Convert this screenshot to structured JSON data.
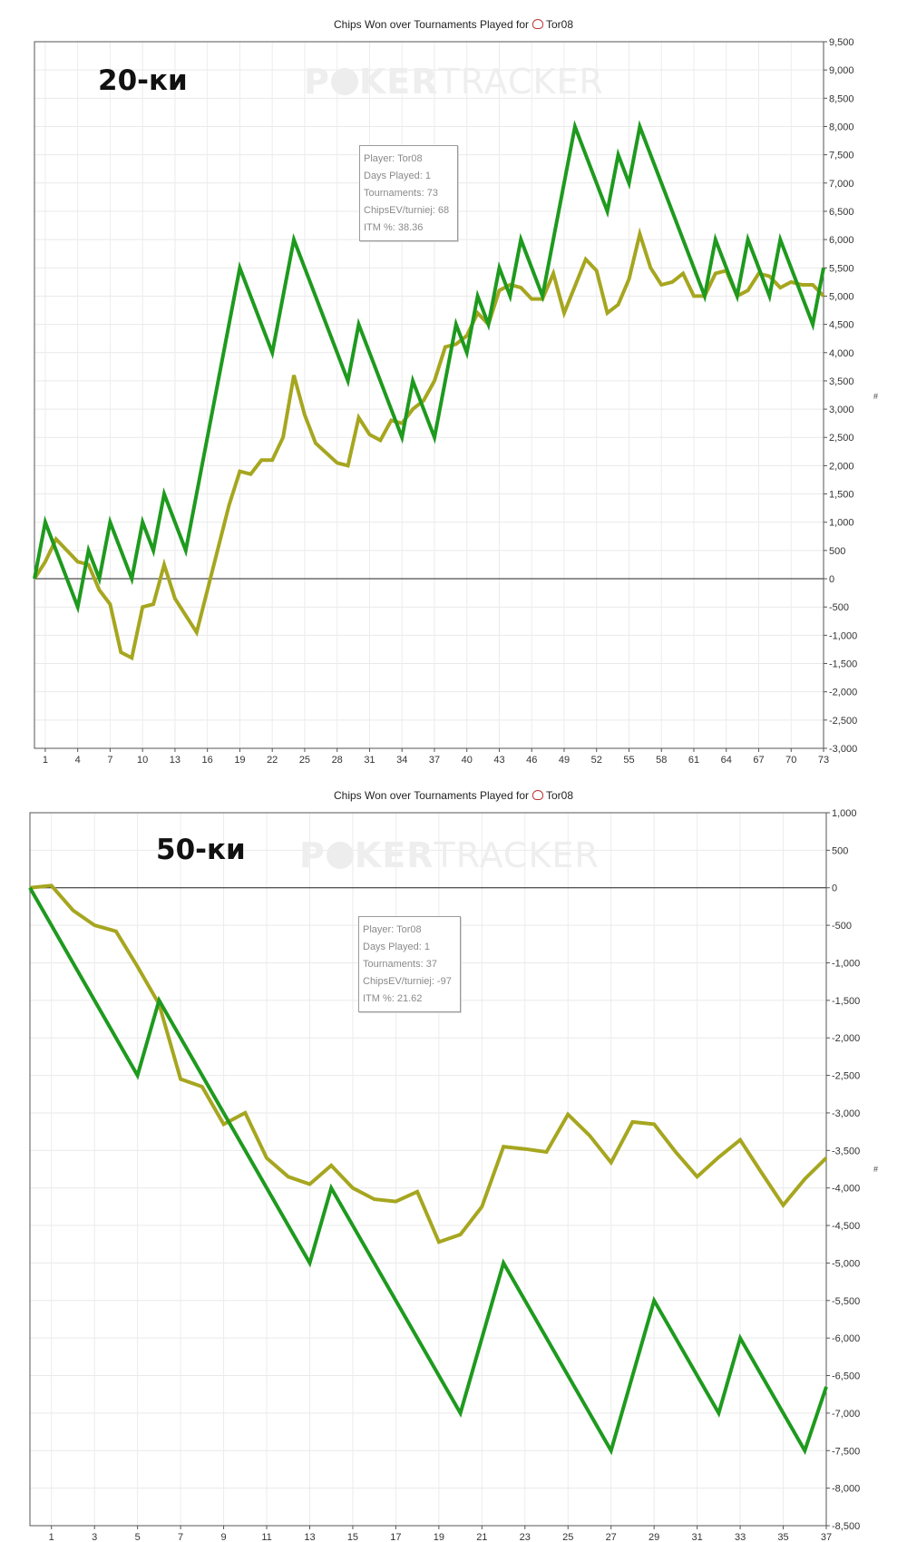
{
  "chart_data": [
    {
      "type": "line",
      "title": "Chips Won over Tournaments Played for",
      "player_name": "Tor08",
      "label": "20-ки",
      "watermark": "POKERTRACKER",
      "info_box": [
        "Player: Tor08",
        "Days Played: 1",
        "Tournaments: 73",
        "ChipsEV/turniej: 68",
        "ITM %: 38.36"
      ],
      "x_tick_labels": [
        "1",
        "4",
        "7",
        "10",
        "13",
        "16",
        "19",
        "22",
        "25",
        "28",
        "31",
        "34",
        "37",
        "40",
        "43",
        "46",
        "49",
        "52",
        "55",
        "58",
        "61",
        "64",
        "67",
        "70",
        "73"
      ],
      "x_range": [
        0,
        73
      ],
      "y_tick_values": [
        -3000,
        -2500,
        -2000,
        -1500,
        -1000,
        -500,
        0,
        500,
        1000,
        1500,
        2000,
        2500,
        3000,
        3500,
        4000,
        4500,
        5000,
        5500,
        6000,
        6500,
        7000,
        7500,
        8000,
        8500,
        9000,
        9500
      ],
      "y_tick_labels": [
        "-3,000",
        "-2,500",
        "-2,000",
        "-1,500",
        "-1,000",
        "-500",
        "0",
        "500",
        "1,000",
        "1,500",
        "2,000",
        "2,500",
        "3,000",
        "3,500",
        "4,000",
        "4,500",
        "5,000",
        "5,500",
        "6,000",
        "6,500",
        "7,000",
        "7,500",
        "8,000",
        "8,500",
        "9,000",
        "9,500"
      ],
      "ylim": [
        -3000,
        9500
      ],
      "grid": true,
      "series": [
        {
          "color": "#1e9a1e",
          "points": [
            [
              0,
              0
            ],
            [
              1,
              1000
            ],
            [
              4,
              -500
            ],
            [
              5,
              500
            ],
            [
              6,
              0
            ],
            [
              7,
              1000
            ],
            [
              9,
              0
            ],
            [
              10,
              1000
            ],
            [
              11,
              500
            ],
            [
              12,
              1500
            ],
            [
              14,
              500
            ],
            [
              19,
              5500
            ],
            [
              22,
              4000
            ],
            [
              24,
              6000
            ],
            [
              29,
              3500
            ],
            [
              30,
              4500
            ],
            [
              34,
              2500
            ],
            [
              35,
              3500
            ],
            [
              37,
              2500
            ],
            [
              39,
              4500
            ],
            [
              40,
              4000
            ],
            [
              41,
              5000
            ],
            [
              42,
              4500
            ],
            [
              43,
              5500
            ],
            [
              44,
              5000
            ],
            [
              45,
              6000
            ],
            [
              47,
              5000
            ],
            [
              50,
              8000
            ],
            [
              53,
              6500
            ],
            [
              54,
              7500
            ],
            [
              55,
              7000
            ],
            [
              56,
              8000
            ],
            [
              62,
              5000
            ],
            [
              63,
              6000
            ],
            [
              65,
              5000
            ],
            [
              66,
              6000
            ],
            [
              68,
              5000
            ],
            [
              69,
              6000
            ],
            [
              72,
              4500
            ],
            [
              73,
              5500
            ]
          ]
        },
        {
          "color": "#a6a620",
          "points": [
            [
              0,
              0
            ],
            [
              1,
              300
            ],
            [
              2,
              700
            ],
            [
              3,
              500
            ],
            [
              4,
              300
            ],
            [
              5,
              250
            ],
            [
              6,
              -200
            ],
            [
              7,
              -450
            ],
            [
              8,
              -1300
            ],
            [
              9,
              -1400
            ],
            [
              10,
              -500
            ],
            [
              11,
              -450
            ],
            [
              12,
              250
            ],
            [
              13,
              -350
            ],
            [
              15,
              -950
            ],
            [
              16,
              -200
            ],
            [
              18,
              1300
            ],
            [
              19,
              1900
            ],
            [
              20,
              1850
            ],
            [
              21,
              2100
            ],
            [
              22,
              2100
            ],
            [
              23,
              2500
            ],
            [
              24,
              3600
            ],
            [
              25,
              2900
            ],
            [
              26,
              2400
            ],
            [
              28,
              2050
            ],
            [
              29,
              2000
            ],
            [
              30,
              2850
            ],
            [
              31,
              2550
            ],
            [
              32,
              2450
            ],
            [
              33,
              2800
            ],
            [
              34,
              2750
            ],
            [
              35,
              3000
            ],
            [
              36,
              3150
            ],
            [
              37,
              3500
            ],
            [
              38,
              4100
            ],
            [
              39,
              4150
            ],
            [
              40,
              4300
            ],
            [
              41,
              4700
            ],
            [
              42,
              4500
            ],
            [
              43,
              5100
            ],
            [
              44,
              5200
            ],
            [
              45,
              5150
            ],
            [
              46,
              4950
            ],
            [
              47,
              4950
            ],
            [
              48,
              5400
            ],
            [
              49,
              4700
            ],
            [
              51,
              5650
            ],
            [
              52,
              5450
            ],
            [
              53,
              4700
            ],
            [
              54,
              4850
            ],
            [
              55,
              5300
            ],
            [
              56,
              6100
            ],
            [
              57,
              5500
            ],
            [
              58,
              5200
            ],
            [
              59,
              5250
            ],
            [
              60,
              5400
            ],
            [
              61,
              5000
            ],
            [
              62,
              5000
            ],
            [
              63,
              5400
            ],
            [
              64,
              5450
            ],
            [
              65,
              5000
            ],
            [
              66,
              5100
            ],
            [
              67,
              5400
            ],
            [
              68,
              5350
            ],
            [
              69,
              5150
            ],
            [
              70,
              5250
            ],
            [
              71,
              5200
            ],
            [
              72,
              5200
            ],
            [
              73,
              5000
            ]
          ]
        }
      ]
    },
    {
      "type": "line",
      "title": "Chips Won over Tournaments Played for",
      "player_name": "Tor08",
      "label": "50-ки",
      "watermark": "POKERTRACKER",
      "info_box": [
        "Player: Tor08",
        "Days Played: 1",
        "Tournaments: 37",
        "ChipsEV/turniej: -97",
        "ITM %: 21.62"
      ],
      "x_tick_labels": [
        "1",
        "3",
        "5",
        "7",
        "9",
        "11",
        "13",
        "15",
        "17",
        "19",
        "21",
        "23",
        "25",
        "27",
        "29",
        "31",
        "33",
        "35",
        "37"
      ],
      "x_range": [
        0,
        37
      ],
      "y_tick_values": [
        -8500,
        -8000,
        -7500,
        -7000,
        -6500,
        -6000,
        -5500,
        -5000,
        -4500,
        -4000,
        -3500,
        -3000,
        -2500,
        -2000,
        -1500,
        -1000,
        -500,
        0,
        500,
        1000
      ],
      "y_tick_labels": [
        "-8,500",
        "-8,000",
        "-7,500",
        "-7,000",
        "-6,500",
        "-6,000",
        "-5,500",
        "-5,000",
        "-4,500",
        "-4,000",
        "-3,500",
        "-3,000",
        "-2,500",
        "-2,000",
        "-1,500",
        "-1,000",
        "-500",
        "0",
        "500",
        "1,000"
      ],
      "ylim": [
        -8500,
        1000
      ],
      "grid": true,
      "series": [
        {
          "color": "#1e9a1e",
          "points": [
            [
              0,
              0
            ],
            [
              5,
              -2500
            ],
            [
              6,
              -1500
            ],
            [
              13,
              -5000
            ],
            [
              14,
              -4000
            ],
            [
              20,
              -7000
            ],
            [
              22,
              -5000
            ],
            [
              27,
              -7500
            ],
            [
              29,
              -5500
            ],
            [
              32,
              -7000
            ],
            [
              33,
              -6000
            ],
            [
              36,
              -7500
            ],
            [
              37,
              -6650
            ]
          ]
        },
        {
          "color": "#a6a620",
          "points": [
            [
              0,
              0
            ],
            [
              1,
              30
            ],
            [
              2,
              -300
            ],
            [
              3,
              -500
            ],
            [
              4,
              -580
            ],
            [
              5,
              -1050
            ],
            [
              6,
              -1550
            ],
            [
              7,
              -2550
            ],
            [
              8,
              -2650
            ],
            [
              9,
              -3150
            ],
            [
              10,
              -3000
            ],
            [
              11,
              -3600
            ],
            [
              12,
              -3850
            ],
            [
              13,
              -3950
            ],
            [
              14,
              -3700
            ],
            [
              15,
              -4000
            ],
            [
              16,
              -4150
            ],
            [
              17,
              -4180
            ],
            [
              18,
              -4050
            ],
            [
              19,
              -4720
            ],
            [
              20,
              -4620
            ],
            [
              21,
              -4250
            ],
            [
              22,
              -3450
            ],
            [
              23,
              -3480
            ],
            [
              24,
              -3520
            ],
            [
              25,
              -3020
            ],
            [
              26,
              -3300
            ],
            [
              27,
              -3660
            ],
            [
              28,
              -3120
            ],
            [
              29,
              -3150
            ],
            [
              30,
              -3520
            ],
            [
              31,
              -3850
            ],
            [
              32,
              -3590
            ],
            [
              33,
              -3360
            ],
            [
              34,
              -3800
            ],
            [
              35,
              -4230
            ],
            [
              36,
              -3880
            ],
            [
              37,
              -3600
            ]
          ]
        }
      ]
    }
  ]
}
